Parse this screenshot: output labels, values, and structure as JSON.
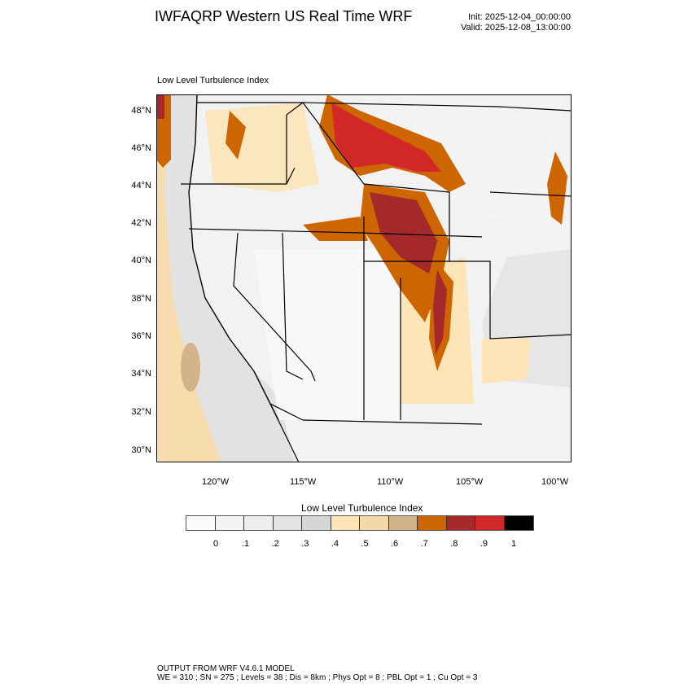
{
  "header": {
    "title": "IWFAQRP Western US Real Time WRF",
    "init": "Init: 2025-12-04_00:00:00",
    "valid": "Valid: 2025-12-08_13:00:00"
  },
  "plot": {
    "subtitle": "Low Level Turbulence Index",
    "lat_labels": [
      "48°N",
      "46°N",
      "44°N",
      "42°N",
      "40°N",
      "38°N",
      "36°N",
      "34°N",
      "32°N",
      "30°N"
    ],
    "lon_labels": [
      "120°W",
      "115°W",
      "110°W",
      "105°W",
      "100°W"
    ]
  },
  "colorbar": {
    "title": "Low Level Turbulence Index",
    "labels": [
      "0",
      ".1",
      ".2",
      ".3",
      ".4",
      ".5",
      ".6",
      ".7",
      ".8",
      ".9",
      "1"
    ],
    "colors": [
      "#fafafa",
      "#f4f4f4",
      "#eeeeee",
      "#e4e4e4",
      "#d6d6d6",
      "#fee5b7",
      "#f3d9aa",
      "#d2b38a",
      "#cd6600",
      "#a5292b",
      "#d22828",
      "#000000"
    ]
  },
  "footer": {
    "line1": "OUTPUT FROM WRF V4.6.1 MODEL",
    "line2": "WE = 310 ; SN = 275 ; Levels = 38 ; Dis = 8km ; Phys Opt = 8 ; PBL Opt = 1 ; Cu Opt = 3"
  }
}
